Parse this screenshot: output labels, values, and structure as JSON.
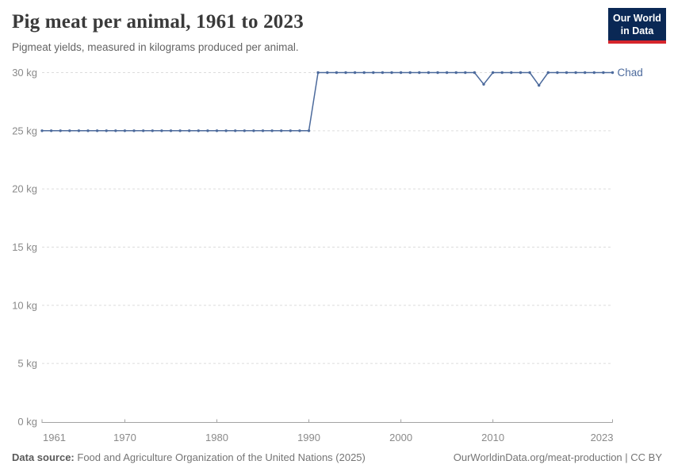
{
  "header": {
    "title": "Pig meat per animal, 1961 to 2023",
    "subtitle": "Pigmeat yields, measured in kilograms produced per animal.",
    "logo": {
      "line1": "Our World",
      "line2": "in Data",
      "bg_color": "#0a2855",
      "accent_color": "#d6252c"
    }
  },
  "footer": {
    "source_label": "Data source:",
    "source_text": "Food and Agriculture Organization of the United Nations (2025)",
    "right_text": "OurWorldinData.org/meat-production | CC BY"
  },
  "chart_data": {
    "type": "line",
    "title": "Pig meat per animal, 1961 to 2023",
    "xlabel": "",
    "ylabel": "",
    "unit_suffix": " kg",
    "xlim": [
      1961,
      2023
    ],
    "ylim": [
      0,
      30
    ],
    "xticks": [
      1961,
      1970,
      1980,
      1990,
      2000,
      2010,
      2023
    ],
    "yticks": [
      0,
      5,
      10,
      15,
      20,
      25,
      30
    ],
    "grid": "dashed-horizontal",
    "legend_position": "end-of-line-label",
    "colors": {
      "line": "#4c6a9c",
      "grid": "#dcdcdc",
      "axis": "#a3a3a3",
      "tick_text": "#8a8a8a"
    },
    "series": [
      {
        "name": "Chad",
        "color": "#4c6a9c",
        "points": [
          [
            1961,
            25
          ],
          [
            1962,
            25
          ],
          [
            1963,
            25
          ],
          [
            1964,
            25
          ],
          [
            1965,
            25
          ],
          [
            1966,
            25
          ],
          [
            1967,
            25
          ],
          [
            1968,
            25
          ],
          [
            1969,
            25
          ],
          [
            1970,
            25
          ],
          [
            1971,
            25
          ],
          [
            1972,
            25
          ],
          [
            1973,
            25
          ],
          [
            1974,
            25
          ],
          [
            1975,
            25
          ],
          [
            1976,
            25
          ],
          [
            1977,
            25
          ],
          [
            1978,
            25
          ],
          [
            1979,
            25
          ],
          [
            1980,
            25
          ],
          [
            1981,
            25
          ],
          [
            1982,
            25
          ],
          [
            1983,
            25
          ],
          [
            1984,
            25
          ],
          [
            1985,
            25
          ],
          [
            1986,
            25
          ],
          [
            1987,
            25
          ],
          [
            1988,
            25
          ],
          [
            1989,
            25
          ],
          [
            1990,
            25
          ],
          [
            1991,
            30
          ],
          [
            1992,
            30
          ],
          [
            1993,
            30
          ],
          [
            1994,
            30
          ],
          [
            1995,
            30
          ],
          [
            1996,
            30
          ],
          [
            1997,
            30
          ],
          [
            1998,
            30
          ],
          [
            1999,
            30
          ],
          [
            2000,
            30
          ],
          [
            2001,
            30
          ],
          [
            2002,
            30
          ],
          [
            2003,
            30
          ],
          [
            2004,
            30
          ],
          [
            2005,
            30
          ],
          [
            2006,
            30
          ],
          [
            2007,
            30
          ],
          [
            2008,
            30
          ],
          [
            2009,
            29
          ],
          [
            2010,
            30
          ],
          [
            2011,
            30
          ],
          [
            2012,
            30
          ],
          [
            2013,
            30
          ],
          [
            2014,
            30
          ],
          [
            2015,
            28.9
          ],
          [
            2016,
            30
          ],
          [
            2017,
            30
          ],
          [
            2018,
            30
          ],
          [
            2019,
            30
          ],
          [
            2020,
            30
          ],
          [
            2021,
            30
          ],
          [
            2022,
            30
          ],
          [
            2023,
            30
          ]
        ]
      }
    ]
  }
}
